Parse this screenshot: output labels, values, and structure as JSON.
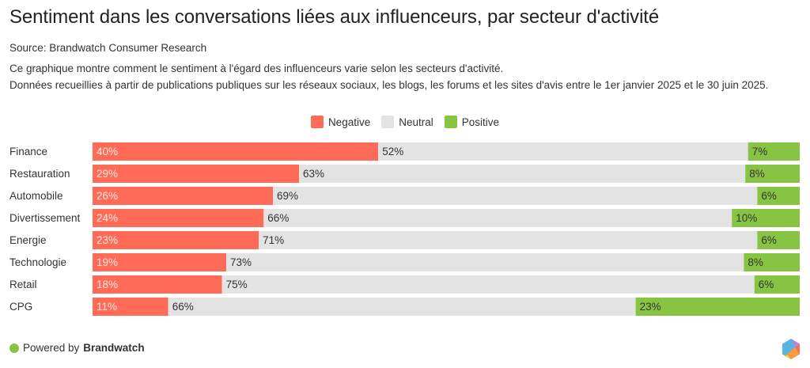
{
  "header": {
    "title": "Sentiment dans les conversations liées aux influenceurs, par secteur d'activité",
    "source": "Source: Brandwatch Consumer Research",
    "description_lines": [
      "Ce graphique montre comment le sentiment à l'égard des influenceurs varie selon les secteurs d'activité.",
      "Données recueillies à partir de publications publiques sur les réseaux sociaux, les blogs, les forums et les sites d'avis entre le 1er janvier 2025 et le 30 juin 2025."
    ]
  },
  "colors": {
    "negative": "#ff6b57",
    "neutral": "#e3e3e3",
    "positive": "#88c443"
  },
  "chart_data": {
    "type": "bar",
    "orientation": "horizontal",
    "stacked": true,
    "normalized": true,
    "title": "Sentiment dans les conversations liées aux influenceurs, par secteur d'activité",
    "xlabel": "",
    "ylabel": "",
    "xlim": [
      0,
      100
    ],
    "grid": false,
    "legend_position": "top-center",
    "categories": [
      "Finance",
      "Restauration",
      "Automobile",
      "Divertissement",
      "Energie",
      "Technologie",
      "Retail",
      "CPG"
    ],
    "series": [
      {
        "name": "Negative",
        "color": "#ff6b57",
        "values": [
          40.4,
          29.2,
          25.5,
          24.2,
          23.5,
          18.9,
          18.3,
          10.7
        ],
        "labels": [
          "40%",
          "29%",
          "26%",
          "24%",
          "23%",
          "19%",
          "18%",
          "11%"
        ]
      },
      {
        "name": "Neutral",
        "color": "#e3e3e3",
        "values": [
          52.3,
          63.1,
          68.5,
          66.2,
          70.5,
          73.2,
          75.3,
          66.1
        ],
        "labels": [
          "52%",
          "63%",
          "69%",
          "66%",
          "71%",
          "73%",
          "75%",
          "66%"
        ]
      },
      {
        "name": "Positive",
        "color": "#88c443",
        "values": [
          7.3,
          7.7,
          6.0,
          9.6,
          6.0,
          7.9,
          6.4,
          23.2
        ],
        "labels": [
          "7%",
          "8%",
          "6%",
          "10%",
          "6%",
          "8%",
          "6%",
          "23%"
        ]
      }
    ]
  },
  "footer": {
    "powered_prefix": "Powered by",
    "brand": "Brandwatch"
  }
}
